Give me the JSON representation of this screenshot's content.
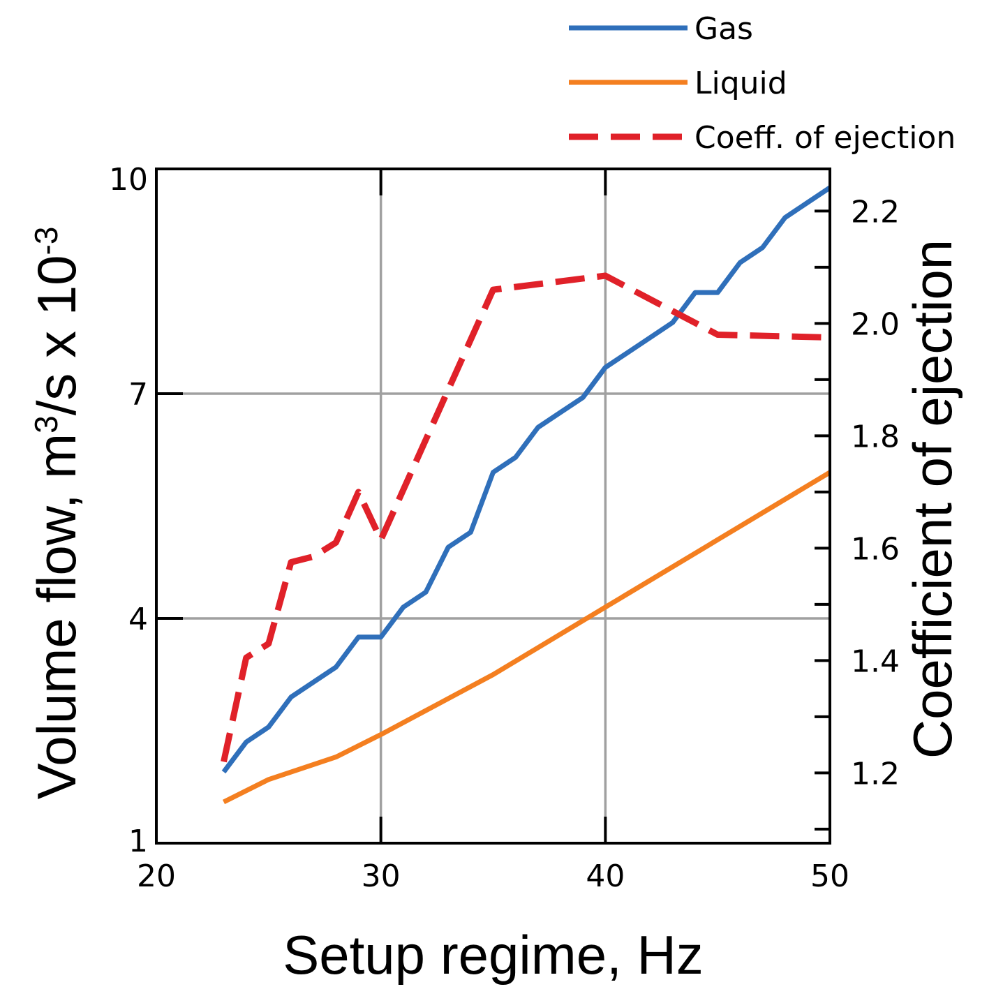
{
  "chart_data": {
    "type": "line",
    "xlabel": "Setup regime, Hz",
    "ylabel": {
      "prefix": "Volume flow, m",
      "sup1": "3",
      "middle": "/s x 10",
      "sup2": "-3"
    },
    "y2label": "Coefficient of ejection",
    "xlim": [
      20,
      50
    ],
    "ylim": [
      1,
      10
    ],
    "y2lim": [
      1.075,
      2.275
    ],
    "xticks": [
      20,
      30,
      40,
      50
    ],
    "yticks": [
      1,
      4,
      7,
      10
    ],
    "y2ticks": [
      "1.2",
      "1.4",
      "1.6",
      "1.8",
      "2.0",
      "2.2"
    ],
    "grid": true,
    "legend_position": "top-right, outside plot",
    "series": [
      {
        "name": "Gas",
        "axis": "left",
        "color": "#2f6fba",
        "style": "solid",
        "x": [
          23,
          24,
          25,
          26,
          27,
          28,
          29,
          30,
          31,
          32,
          33,
          34,
          35,
          36,
          37,
          38,
          39,
          40,
          41,
          42,
          43,
          44,
          45,
          46,
          47,
          48,
          49,
          50
        ],
        "y": [
          1.95,
          2.35,
          2.55,
          2.95,
          3.15,
          3.35,
          3.75,
          3.75,
          4.15,
          4.35,
          4.95,
          5.15,
          5.95,
          6.15,
          6.55,
          6.75,
          6.95,
          7.35,
          7.55,
          7.75,
          7.95,
          8.35,
          8.35,
          8.75,
          8.95,
          9.35,
          9.55,
          9.75
        ]
      },
      {
        "name": "Liquid",
        "axis": "left",
        "color": "#f47f20",
        "style": "solid",
        "x": [
          23,
          25,
          27,
          28,
          29,
          30,
          35,
          40,
          45,
          50
        ],
        "y": [
          1.55,
          1.85,
          2.05,
          2.15,
          2.3,
          2.45,
          3.25,
          4.15,
          5.05,
          5.95
        ]
      },
      {
        "name": "Coeff. of ejection",
        "axis": "right",
        "color": "#e02129",
        "style": "dashed",
        "x": [
          23,
          24,
          25,
          26,
          27,
          28,
          29,
          30,
          35,
          40,
          45,
          50
        ],
        "y": [
          1.22,
          1.405,
          1.43,
          1.575,
          1.585,
          1.61,
          1.7,
          1.615,
          2.06,
          2.085,
          1.98,
          1.975
        ]
      }
    ]
  }
}
